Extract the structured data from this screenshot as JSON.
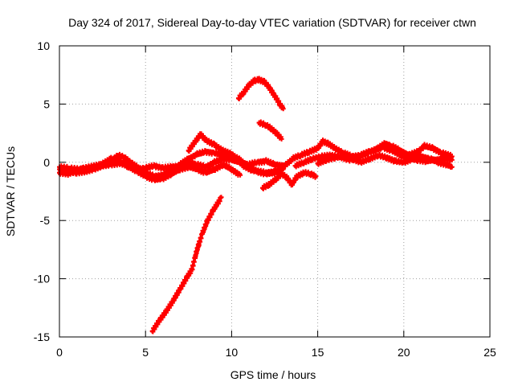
{
  "chart_data": {
    "type": "scatter",
    "title": "Day 324 of 2017, Sidereal Day-to-day VTEC variation (SDTVAR) for receiver ctwn",
    "xlabel": "GPS time / hours",
    "ylabel": "SDTVAR / TECUs",
    "xlim": [
      0,
      25
    ],
    "ylim": [
      -15,
      10
    ],
    "xticks": [
      0,
      5,
      10,
      15,
      20,
      25
    ],
    "xtick_labels": [
      "0",
      "5",
      "10",
      "15",
      "20",
      "25"
    ],
    "yticks": [
      -15,
      -10,
      -5,
      0,
      5,
      10
    ],
    "ytick_labels": [
      "-15",
      "-10",
      "-5",
      "0",
      "5",
      "10"
    ],
    "grid": true,
    "legend": "none",
    "marker": "plus",
    "series_color": "#ff0000",
    "series": [
      {
        "name": "track-baseline-a",
        "points": [
          [
            0,
            -0.6
          ],
          [
            0.5,
            -0.8
          ],
          [
            1,
            -0.9
          ],
          [
            1.5,
            -0.8
          ],
          [
            2,
            -0.6
          ],
          [
            2.5,
            -0.3
          ],
          [
            3,
            0.1
          ],
          [
            3.4,
            0.6
          ],
          [
            3.8,
            0.4
          ],
          [
            4.2,
            -0.1
          ],
          [
            4.6,
            -0.5
          ],
          [
            5,
            -0.9
          ],
          [
            5.5,
            -1.2
          ],
          [
            6,
            -1.1
          ],
          [
            6.5,
            -0.7
          ],
          [
            7,
            -0.2
          ],
          [
            7.5,
            0.3
          ],
          [
            8,
            0.7
          ],
          [
            8.5,
            0.9
          ],
          [
            9,
            0.8
          ],
          [
            9.5,
            0.6
          ],
          [
            10,
            0.6
          ],
          [
            10.5,
            0.2
          ],
          [
            11,
            -0.4
          ],
          [
            11.5,
            -0.8
          ],
          [
            12,
            -1.0
          ],
          [
            12.5,
            -0.9
          ],
          [
            13,
            -0.4
          ],
          [
            13.5,
            0.2
          ]
        ]
      },
      {
        "name": "track-baseline-b",
        "points": [
          [
            0,
            -0.4
          ],
          [
            0.6,
            -0.5
          ],
          [
            1.2,
            -0.6
          ],
          [
            1.8,
            -0.4
          ],
          [
            2.4,
            -0.2
          ],
          [
            3,
            0.3
          ],
          [
            3.5,
            0.1
          ],
          [
            4,
            -0.4
          ],
          [
            4.5,
            -0.6
          ],
          [
            5,
            -0.5
          ],
          [
            5.5,
            -0.3
          ],
          [
            6,
            -0.5
          ],
          [
            6.5,
            -0.4
          ],
          [
            7,
            -0.3
          ],
          [
            7.5,
            0.0
          ],
          [
            8,
            -0.2
          ],
          [
            8.5,
            -0.4
          ],
          [
            9,
            0.0
          ],
          [
            9.5,
            0.3
          ],
          [
            10,
            0.2
          ],
          [
            10.5,
            0.0
          ],
          [
            11,
            -0.2
          ],
          [
            11.5,
            0.0
          ],
          [
            12,
            0.1
          ],
          [
            12.5,
            -0.2
          ],
          [
            13,
            -0.3
          ]
        ]
      },
      {
        "name": "track-baseline-c",
        "points": [
          [
            0,
            -0.9
          ],
          [
            0.5,
            -1.0
          ],
          [
            1,
            -0.7
          ],
          [
            1.5,
            -0.5
          ],
          [
            2,
            -0.4
          ],
          [
            2.5,
            -0.3
          ],
          [
            3,
            -0.2
          ],
          [
            3.5,
            -0.1
          ],
          [
            4,
            -0.3
          ],
          [
            4.5,
            -0.8
          ],
          [
            5,
            -1.2
          ],
          [
            5.5,
            -1.5
          ],
          [
            6,
            -1.4
          ],
          [
            6.5,
            -1.0
          ],
          [
            7,
            -0.6
          ],
          [
            7.5,
            -0.4
          ],
          [
            8,
            -0.6
          ],
          [
            8.5,
            -0.9
          ],
          [
            9,
            -0.6
          ],
          [
            9.5,
            -0.2
          ],
          [
            10,
            -0.6
          ],
          [
            10.5,
            -1.1
          ]
        ]
      },
      {
        "name": "track-bump-8h",
        "points": [
          [
            7.5,
            1.0
          ],
          [
            8,
            2.0
          ],
          [
            8.2,
            2.4
          ],
          [
            8.5,
            1.9
          ],
          [
            9,
            1.5
          ],
          [
            9.5,
            1.0
          ],
          [
            10,
            0.7
          ],
          [
            10.3,
            0.3
          ],
          [
            10.7,
            -0.3
          ],
          [
            11.2,
            -0.7
          ],
          [
            12,
            -0.9
          ],
          [
            12.5,
            -0.8
          ],
          [
            13,
            -0.6
          ]
        ]
      },
      {
        "name": "track-arc-11h",
        "points": [
          [
            10.4,
            5.5
          ],
          [
            10.7,
            6.0
          ],
          [
            11,
            6.6
          ],
          [
            11.3,
            7.0
          ],
          [
            11.6,
            7.1
          ],
          [
            11.9,
            6.9
          ],
          [
            12.2,
            6.4
          ],
          [
            12.5,
            5.7
          ],
          [
            12.8,
            5.0
          ],
          [
            13,
            4.6
          ]
        ]
      },
      {
        "name": "track-segment-12h",
        "points": [
          [
            11.6,
            3.4
          ],
          [
            12,
            3.2
          ],
          [
            12.3,
            2.9
          ],
          [
            12.6,
            2.5
          ],
          [
            12.9,
            2.0
          ]
        ]
      },
      {
        "name": "track-dip-12h",
        "points": [
          [
            11.8,
            -2.2
          ],
          [
            12.2,
            -1.9
          ],
          [
            12.6,
            -1.4
          ],
          [
            12.9,
            -1.0
          ],
          [
            13.2,
            -1.3
          ],
          [
            13.5,
            -1.9
          ],
          [
            13.8,
            -1.2
          ],
          [
            14.2,
            -0.9
          ],
          [
            14.6,
            -1.0
          ],
          [
            14.9,
            -1.2
          ]
        ]
      },
      {
        "name": "track-afternoon-a",
        "points": [
          [
            13.5,
            0.3
          ],
          [
            14,
            0.6
          ],
          [
            14.5,
            0.9
          ],
          [
            15,
            1.2
          ],
          [
            15.3,
            1.8
          ],
          [
            15.6,
            1.6
          ],
          [
            16,
            1.2
          ],
          [
            16.5,
            0.8
          ],
          [
            17,
            0.5
          ],
          [
            17.5,
            0.6
          ],
          [
            18,
            0.9
          ],
          [
            18.5,
            1.2
          ],
          [
            18.9,
            1.6
          ],
          [
            19.3,
            1.4
          ],
          [
            19.8,
            1.0
          ],
          [
            20.3,
            0.6
          ],
          [
            20.8,
            0.9
          ],
          [
            21.2,
            1.4
          ],
          [
            21.7,
            1.2
          ],
          [
            22.2,
            0.8
          ],
          [
            22.8,
            0.5
          ]
        ]
      },
      {
        "name": "track-afternoon-b",
        "points": [
          [
            13.7,
            -0.3
          ],
          [
            14.2,
            0.0
          ],
          [
            14.7,
            0.3
          ],
          [
            15.2,
            0.5
          ],
          [
            15.7,
            0.6
          ],
          [
            16.2,
            0.5
          ],
          [
            16.8,
            0.2
          ],
          [
            17.3,
            0.4
          ],
          [
            17.8,
            0.8
          ],
          [
            18.3,
            1.0
          ],
          [
            18.8,
            1.3
          ],
          [
            19.3,
            1.0
          ],
          [
            19.8,
            0.6
          ],
          [
            20.3,
            0.3
          ],
          [
            20.8,
            0.2
          ],
          [
            21.3,
            0.1
          ],
          [
            21.8,
            0.2
          ],
          [
            22.3,
            0.3
          ],
          [
            22.8,
            0.2
          ]
        ]
      },
      {
        "name": "track-afternoon-c",
        "points": [
          [
            15,
            -0.1
          ],
          [
            15.5,
            0.2
          ],
          [
            16,
            0.4
          ],
          [
            16.5,
            0.6
          ],
          [
            17,
            0.3
          ],
          [
            17.5,
            0.0
          ],
          [
            18,
            0.3
          ],
          [
            18.5,
            0.6
          ],
          [
            19,
            0.4
          ],
          [
            19.5,
            0.1
          ],
          [
            20,
            0.0
          ],
          [
            20.5,
            0.3
          ],
          [
            21,
            0.5
          ],
          [
            21.5,
            0.3
          ],
          [
            22,
            0.0
          ],
          [
            22.5,
            -0.2
          ],
          [
            22.8,
            -0.4
          ]
        ]
      },
      {
        "name": "track-descending",
        "points": [
          [
            5.4,
            -14.5
          ],
          [
            5.8,
            -13.6
          ],
          [
            6.2,
            -12.8
          ],
          [
            6.6,
            -11.9
          ],
          [
            7,
            -10.9
          ],
          [
            7.4,
            -9.9
          ],
          [
            7.7,
            -9.2
          ],
          [
            7.9,
            -8.0
          ],
          [
            8.1,
            -7.0
          ],
          [
            8.3,
            -6.1
          ],
          [
            8.6,
            -5.0
          ],
          [
            8.9,
            -4.2
          ],
          [
            9.2,
            -3.5
          ],
          [
            9.4,
            -3.0
          ]
        ]
      }
    ]
  }
}
